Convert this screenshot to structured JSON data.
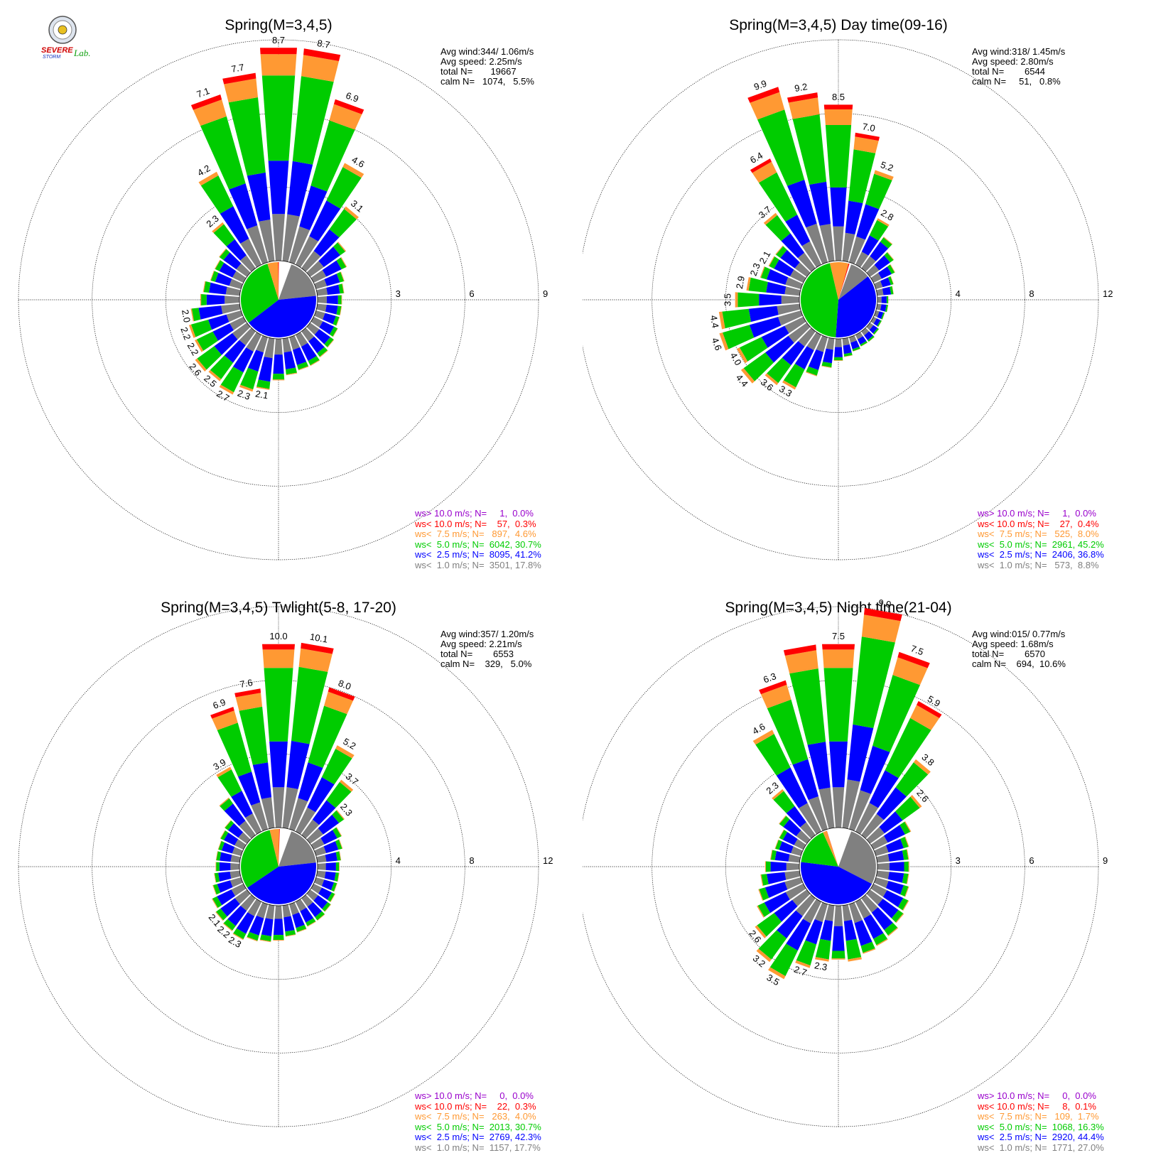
{
  "logo": {
    "line1": "SEVERE",
    "line2": "STORM",
    "line3": "Lab."
  },
  "legend_colors": {
    "gt10": "#9900cc",
    "lt10": "#ff0000",
    "lt7_5": "#ff9933",
    "lt5": "#00cc00",
    "lt2_5": "#0000ff",
    "lt1": "#808080"
  },
  "chart_data": [
    {
      "type": "wind-rose",
      "title": "Spring(M=3,4,5)",
      "rlim": [
        0,
        9
      ],
      "ring_labels": [
        "3",
        "6",
        "9"
      ],
      "stats": {
        "avg_wind": "Avg wind:344/ 1.06m/s",
        "avg_speed": "Avg speed: 2.25m/s",
        "total": "total N=       19667",
        "calm": "calm N=   1074,   5.5%"
      },
      "legend": [
        "ws> 10.0 m/s; N=     1,  0.0%",
        "ws< 10.0 m/s; N=    57,  0.3%",
        "ws<  7.5 m/s; N=   897,  4.6%",
        "ws<  5.0 m/s; N=  6042, 30.7%",
        "ws<  2.5 m/s; N=  8095, 41.2%",
        "ws<  1.0 m/s; N=  3501, 17.8%"
      ],
      "pie": [
        17.8,
        41.2,
        30.7,
        4.6,
        0.3,
        0.0
      ],
      "directions_deg": [
        0,
        10,
        20,
        30,
        40,
        50,
        60,
        70,
        80,
        90,
        100,
        110,
        120,
        130,
        140,
        150,
        160,
        170,
        180,
        190,
        200,
        210,
        220,
        230,
        240,
        250,
        260,
        270,
        280,
        290,
        300,
        310,
        320,
        330,
        340,
        350
      ],
      "totals_pct": [
        8.7,
        8.7,
        6.9,
        4.6,
        3.1,
        1.8,
        1.5,
        1.2,
        1.1,
        1.0,
        1.0,
        1.0,
        1.1,
        1.2,
        1.3,
        1.4,
        1.4,
        1.5,
        1.7,
        2.1,
        2.3,
        2.7,
        2.5,
        2.6,
        2.2,
        2.2,
        2.0,
        1.6,
        1.5,
        1.3,
        1.3,
        1.4,
        2.3,
        4.2,
        7.1,
        7.7
      ],
      "value_labels": [
        "8.7",
        "8.7",
        "6.9",
        "4.6",
        "3.1",
        "",
        "",
        "",
        "",
        "",
        "",
        "",
        "",
        "",
        "",
        "",
        "",
        "",
        "",
        "2.1",
        "2.3",
        "2.7",
        "2.5",
        "2.6",
        "2.2",
        "2.2",
        "2.0",
        "",
        "",
        "",
        "",
        "",
        "2.3",
        "4.2",
        "7.1",
        "7.7"
      ]
    },
    {
      "type": "wind-rose",
      "title": "Spring(M=3,4,5) Day time(09-16)",
      "rlim": [
        0,
        12
      ],
      "ring_labels": [
        "4",
        "8",
        "12"
      ],
      "stats": {
        "avg_wind": "Avg wind:318/ 1.45m/s",
        "avg_speed": "Avg speed: 2.80m/s",
        "total": "total N=        6544",
        "calm": "calm N=     51,   0.8%"
      },
      "legend": [
        "ws> 10.0 m/s; N=     1,  0.0%",
        "ws< 10.0 m/s; N=    27,  0.4%",
        "ws<  7.5 m/s; N=   525,  8.0%",
        "ws<  5.0 m/s; N=  2961, 45.2%",
        "ws<  2.5 m/s; N=  2406, 36.8%",
        "ws<  1.0 m/s; N=   573,  8.8%"
      ],
      "pie": [
        8.8,
        36.8,
        45.2,
        8.0,
        0.4,
        0.0
      ],
      "directions_deg": [
        0,
        10,
        20,
        30,
        40,
        50,
        60,
        70,
        80,
        90,
        100,
        110,
        120,
        130,
        140,
        150,
        160,
        170,
        180,
        190,
        200,
        210,
        220,
        230,
        240,
        250,
        260,
        270,
        280,
        290,
        300,
        310,
        320,
        330,
        340,
        350
      ],
      "totals_pct": [
        8.5,
        7.0,
        5.2,
        2.8,
        2.1,
        1.6,
        1.3,
        1.0,
        0.9,
        0.6,
        0.6,
        0.5,
        0.5,
        0.6,
        0.7,
        0.7,
        0.8,
        1.0,
        1.2,
        1.6,
        2.2,
        3.3,
        3.6,
        4.4,
        4.0,
        4.6,
        4.4,
        3.5,
        2.9,
        2.3,
        2.1,
        2.1,
        3.7,
        6.4,
        9.9,
        9.2
      ],
      "value_labels": [
        "8.5",
        "7.0",
        "5.2",
        "2.8",
        "",
        "",
        "",
        "",
        "",
        "",
        "",
        "",
        "",
        "",
        "",
        "",
        "",
        "",
        "",
        "",
        "",
        "3.3",
        "3.6",
        "4.4",
        "4.0",
        "4.6",
        "4.4",
        "3.5",
        "2.9",
        "2.3",
        "2.1",
        "",
        "3.7",
        "6.4",
        "9.9",
        "9.2"
      ]
    },
    {
      "type": "wind-rose",
      "title": "Spring(M=3,4,5) Twlight(5-8, 17-20)",
      "rlim": [
        0,
        12
      ],
      "ring_labels": [
        "4",
        "8",
        "12"
      ],
      "stats": {
        "avg_wind": "Avg wind:357/ 1.20m/s",
        "avg_speed": "Avg speed: 2.21m/s",
        "total": "total N=        6553",
        "calm": "calm N=    329,   5.0%"
      },
      "legend": [
        "ws> 10.0 m/s; N=     0,  0.0%",
        "ws< 10.0 m/s; N=    22,  0.3%",
        "ws<  7.5 m/s; N=   263,  4.0%",
        "ws<  5.0 m/s; N=  2013, 30.7%",
        "ws<  2.5 m/s; N=  2769, 42.3%",
        "ws<  1.0 m/s; N=  1157, 17.7%"
      ],
      "pie": [
        17.7,
        42.3,
        30.7,
        4.0,
        0.3,
        0.0
      ],
      "directions_deg": [
        0,
        10,
        20,
        30,
        40,
        50,
        60,
        70,
        80,
        90,
        100,
        110,
        120,
        130,
        140,
        150,
        160,
        170,
        180,
        190,
        200,
        210,
        220,
        230,
        240,
        250,
        260,
        270,
        280,
        290,
        300,
        310,
        320,
        330,
        340,
        350
      ],
      "totals_pct": [
        10.0,
        10.1,
        8.0,
        5.2,
        3.7,
        2.3,
        1.7,
        1.5,
        1.3,
        1.2,
        1.2,
        1.2,
        1.3,
        1.4,
        1.5,
        1.5,
        1.6,
        1.7,
        1.9,
        2.0,
        2.1,
        2.3,
        2.2,
        2.1,
        1.9,
        1.6,
        1.4,
        1.3,
        1.3,
        1.3,
        1.4,
        1.5,
        2.5,
        3.9,
        6.9,
        7.6
      ],
      "value_labels": [
        "10.0",
        "10.1",
        "8.0",
        "5.2",
        "3.7",
        "2.3",
        "",
        "",
        "",
        "",
        "",
        "",
        "",
        "",
        "",
        "",
        "",
        "",
        "",
        "",
        "",
        "2.3",
        "2.2",
        "2.1",
        "",
        "",
        "",
        "",
        "",
        "",
        "",
        "",
        "",
        "3.9",
        "6.9",
        "7.6"
      ]
    },
    {
      "type": "wind-rose",
      "title": "Spring(M=3,4,5) Night time(21-04)",
      "rlim": [
        0,
        9
      ],
      "ring_labels": [
        "3",
        "6",
        "9"
      ],
      "stats": {
        "avg_wind": "Avg wind:015/ 0.77m/s",
        "avg_speed": "Avg speed: 1.68m/s",
        "total": "total N=        6570",
        "calm": "calm N=    694,  10.6%"
      },
      "legend": [
        "ws> 10.0 m/s; N=     0,  0.0%",
        "ws< 10.0 m/s; N=     8,  0.1%",
        "ws<  7.5 m/s; N=   109,  1.7%",
        "ws<  5.0 m/s; N=  1068, 16.3%",
        "ws<  2.5 m/s; N=  2920, 44.4%",
        "ws<  1.0 m/s; N=  1771, 27.0%"
      ],
      "pie": [
        27.0,
        44.4,
        16.3,
        1.7,
        0.1,
        0.0
      ],
      "directions_deg": [
        0,
        10,
        20,
        30,
        40,
        50,
        60,
        70,
        80,
        90,
        100,
        110,
        120,
        130,
        140,
        150,
        160,
        170,
        180,
        190,
        200,
        210,
        220,
        230,
        240,
        250,
        260,
        270,
        280,
        290,
        300,
        310,
        320,
        330,
        340,
        350
      ],
      "totals_pct": [
        7.5,
        9.0,
        7.5,
        5.9,
        3.8,
        2.6,
        1.7,
        1.4,
        1.3,
        1.3,
        1.3,
        1.4,
        1.6,
        1.7,
        1.9,
        2.0,
        2.1,
        2.3,
        2.2,
        2.3,
        2.7,
        3.5,
        3.2,
        2.6,
        2.1,
        1.8,
        1.6,
        1.4,
        1.2,
        1.1,
        1.1,
        1.4,
        2.3,
        4.6,
        6.3,
        7.5
      ],
      "value_labels": [
        "7.5",
        "9.0",
        "7.5",
        "5.9",
        "3.8",
        "2.6",
        "",
        "",
        "",
        "",
        "",
        "",
        "",
        "",
        "",
        "",
        "",
        "",
        "",
        "2.3",
        "2.7",
        "3.5",
        "3.2",
        "2.6",
        "",
        "",
        "",
        "",
        "",
        "",
        "",
        "",
        "2.3",
        "4.6",
        "6.3",
        ""
      ]
    }
  ]
}
